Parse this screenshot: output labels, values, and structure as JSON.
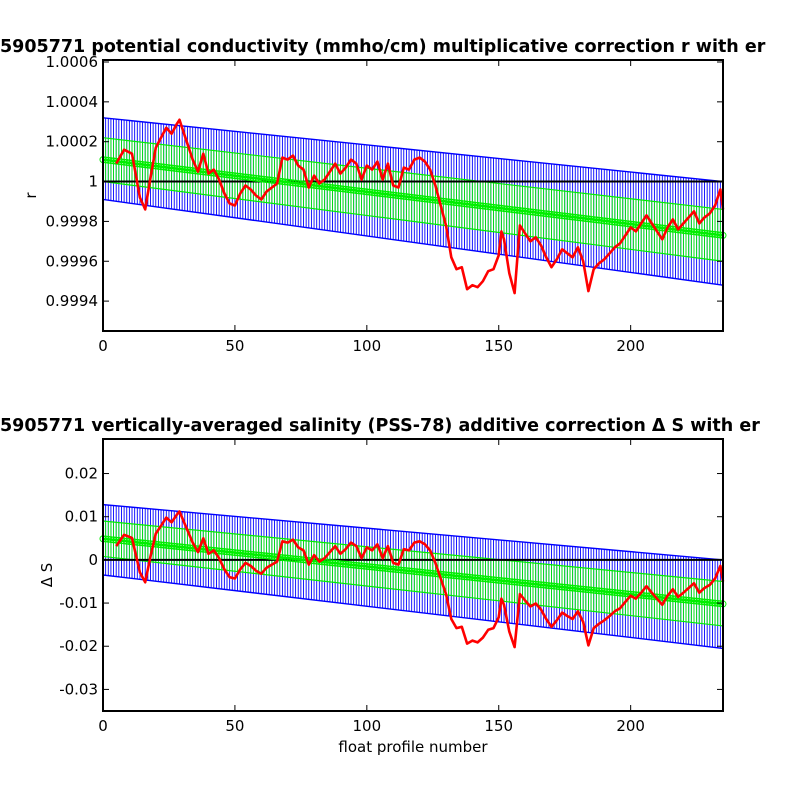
{
  "chart_data": [
    {
      "type": "line",
      "title": "5905771 potential conductivity (mmho/cm) multiplicative correction r with er",
      "xlabel": "",
      "ylabel": "r",
      "xlim": [
        0,
        235
      ],
      "ylim": [
        0.99925,
        1.00061
      ],
      "x_ticks": [
        0,
        50,
        100,
        150,
        200
      ],
      "y_ticks": [
        0.9994,
        0.9996,
        0.9998,
        1,
        1.0002,
        1.0004,
        1.0006
      ],
      "y_tick_labels": [
        "0.9994",
        "0.9996",
        "0.9998",
        "1",
        "1.0002",
        "1.0004",
        "1.0006"
      ],
      "reference_line": 1.0,
      "grid": false,
      "colors": {
        "raw": "#ff0000",
        "fit": "#00ee00",
        "fit_error": "#00ee00",
        "envelope": "#0000ff",
        "reference": "#000000"
      },
      "series": [
        {
          "style": "red line",
          "x": [
            5,
            8,
            11,
            14,
            16,
            18,
            20,
            22,
            24,
            26,
            28,
            29,
            30,
            32,
            34,
            36,
            38,
            40,
            42,
            44,
            46,
            48,
            50,
            52,
            54,
            56,
            58,
            60,
            62,
            64,
            66,
            68,
            70,
            72,
            74,
            76,
            78,
            80,
            82,
            84,
            86,
            88,
            90,
            92,
            94,
            96,
            98,
            100,
            102,
            104,
            106,
            108,
            110,
            112,
            114,
            116,
            118,
            120,
            122,
            124,
            126,
            128,
            130,
            132,
            134,
            136,
            138,
            140,
            142,
            144,
            146,
            148,
            150,
            151,
            152,
            154,
            156,
            158,
            160,
            162,
            164,
            166,
            168,
            170,
            172,
            174,
            176,
            178,
            180,
            182,
            184,
            186,
            188,
            190,
            192,
            194,
            196,
            198,
            200,
            202,
            204,
            206,
            208,
            210,
            212,
            214,
            216,
            218,
            220,
            222,
            224,
            226,
            228,
            230,
            232,
            234,
            235
          ],
          "y": [
            1.00009,
            1.00016,
            1.00014,
            0.99992,
            0.99986,
            1.00002,
            1.00017,
            1.00022,
            1.00027,
            1.00024,
            1.00029,
            1.00031,
            1.00027,
            1.00019,
            1.00011,
            1.00005,
            1.00014,
            1.00004,
            1.00006,
            1.00001,
            0.99994,
            0.99989,
            0.99988,
            0.99994,
            0.99998,
            0.99996,
            0.99993,
            0.99991,
            0.99995,
            0.99997,
            0.99999,
            1.00012,
            1.00011,
            1.00013,
            1.00008,
            1.00006,
            0.99997,
            1.00003,
            0.99999,
            1.00001,
            1.00005,
            1.00009,
            1.00004,
            1.00007,
            1.00011,
            1.00009,
            1.00001,
            1.00008,
            1.00006,
            1.0001,
            1.00001,
            1.00009,
            0.99998,
            0.99997,
            1.00007,
            1.00006,
            1.00011,
            1.00012,
            1.0001,
            1.00006,
            0.99998,
            0.99988,
            0.99978,
            0.99962,
            0.99956,
            0.99957,
            0.99946,
            0.99948,
            0.99947,
            0.9995,
            0.99955,
            0.99956,
            0.99963,
            0.99975,
            0.99971,
            0.99954,
            0.99944,
            0.99978,
            0.99974,
            0.9997,
            0.99972,
            0.99968,
            0.99962,
            0.99957,
            0.99961,
            0.99966,
            0.99964,
            0.99962,
            0.99967,
            0.9996,
            0.99945,
            0.99956,
            0.99959,
            0.99961,
            0.99964,
            0.99967,
            0.99969,
            0.99973,
            0.99977,
            0.99975,
            0.99979,
            0.99983,
            0.99979,
            0.99975,
            0.99971,
            0.99977,
            0.99981,
            0.99976,
            0.99979,
            0.99982,
            0.99985,
            0.99979,
            0.99982,
            0.99984,
            0.99988,
            0.99996,
            0.99986
          ]
        },
        {
          "style": "green fit line with circle markers",
          "x": [
            0,
            235
          ],
          "y": [
            1.00011,
            0.99973
          ]
        },
        {
          "style": "green error band",
          "x": [
            0,
            235
          ],
          "upper": [
            1.00022,
            0.99986
          ],
          "lower": [
            1.0,
            0.9996
          ]
        },
        {
          "style": "blue error envelope",
          "x": [
            0,
            235
          ],
          "upper": [
            1.00032,
            1.0
          ],
          "lower": [
            0.99991,
            0.99948
          ]
        }
      ]
    },
    {
      "type": "line",
      "title": "5905771 vertically-averaged salinity (PSS-78) additive correction Δ S with er",
      "xlabel": "float profile number",
      "ylabel": "Δ S",
      "xlim": [
        0,
        235
      ],
      "ylim": [
        -0.035,
        0.028
      ],
      "x_ticks": [
        0,
        50,
        100,
        150,
        200
      ],
      "y_ticks": [
        -0.03,
        -0.02,
        -0.01,
        0,
        0.01,
        0.02
      ],
      "y_tick_labels": [
        "-0.03",
        "-0.02",
        "-0.01",
        "0",
        "0.01",
        "0.02"
      ],
      "reference_line": 0,
      "grid": false,
      "colors": {
        "raw": "#ff0000",
        "fit": "#00ee00",
        "fit_error": "#00ee00",
        "envelope": "#0000ff",
        "reference": "#000000"
      },
      "series": [
        {
          "style": "red line",
          "x": [
            5,
            8,
            11,
            14,
            16,
            18,
            20,
            22,
            24,
            26,
            28,
            29,
            30,
            32,
            34,
            36,
            38,
            40,
            42,
            44,
            46,
            48,
            50,
            52,
            54,
            56,
            58,
            60,
            62,
            64,
            66,
            68,
            70,
            72,
            74,
            76,
            78,
            80,
            82,
            84,
            86,
            88,
            90,
            92,
            94,
            96,
            98,
            100,
            102,
            104,
            106,
            108,
            110,
            112,
            114,
            116,
            118,
            120,
            122,
            124,
            126,
            128,
            130,
            132,
            134,
            136,
            138,
            140,
            142,
            144,
            146,
            148,
            150,
            151,
            152,
            154,
            156,
            158,
            160,
            162,
            164,
            166,
            168,
            170,
            172,
            174,
            176,
            178,
            180,
            182,
            184,
            186,
            188,
            190,
            192,
            194,
            196,
            198,
            200,
            202,
            204,
            206,
            208,
            210,
            212,
            214,
            216,
            218,
            220,
            222,
            224,
            226,
            228,
            230,
            232,
            234,
            235
          ],
          "y": [
            0.0032,
            0.0058,
            0.0051,
            -0.0029,
            -0.0052,
            0.0008,
            0.0061,
            0.0079,
            0.0098,
            0.0087,
            0.0105,
            0.0112,
            0.0098,
            0.0069,
            0.004,
            0.0018,
            0.005,
            0.0014,
            0.0022,
            0.0004,
            -0.0022,
            -0.004,
            -0.0043,
            -0.0022,
            -0.0007,
            -0.0014,
            -0.0025,
            -0.0032,
            -0.0018,
            -0.0011,
            -0.0004,
            0.0043,
            0.004,
            0.0047,
            0.0029,
            0.0022,
            -0.0011,
            0.0011,
            -0.0004,
            0.0004,
            0.0018,
            0.0032,
            0.0014,
            0.0025,
            0.004,
            0.0032,
            0.0004,
            0.0029,
            0.0022,
            0.0036,
            0.0004,
            0.0032,
            -0.0007,
            -0.0011,
            0.0025,
            0.0022,
            0.004,
            0.0043,
            0.0036,
            0.0022,
            -0.0007,
            -0.0043,
            -0.0079,
            -0.0137,
            -0.0158,
            -0.0155,
            -0.0194,
            -0.0187,
            -0.0191,
            -0.018,
            -0.0162,
            -0.0158,
            -0.0133,
            -0.009,
            -0.0104,
            -0.0166,
            -0.0202,
            -0.0079,
            -0.0094,
            -0.0108,
            -0.0101,
            -0.0115,
            -0.0137,
            -0.0155,
            -0.014,
            -0.0122,
            -0.013,
            -0.0137,
            -0.0119,
            -0.0144,
            -0.0198,
            -0.0158,
            -0.0148,
            -0.014,
            -0.013,
            -0.0119,
            -0.0112,
            -0.0097,
            -0.0083,
            -0.009,
            -0.0076,
            -0.0061,
            -0.0076,
            -0.009,
            -0.0104,
            -0.0083,
            -0.0068,
            -0.0086,
            -0.0076,
            -0.0065,
            -0.0054,
            -0.0076,
            -0.0065,
            -0.0058,
            -0.0043,
            -0.0014,
            -0.005
          ]
        },
        {
          "style": "green fit line with circle markers",
          "x": [
            0,
            235
          ],
          "y": [
            0.0049,
            -0.0102
          ]
        },
        {
          "style": "green error band",
          "x": [
            0,
            235
          ],
          "upper": [
            0.009,
            -0.005
          ],
          "lower": [
            0.0008,
            -0.0153
          ]
        },
        {
          "style": "blue error envelope",
          "x": [
            0,
            235
          ],
          "upper": [
            0.0128,
            0.0
          ],
          "lower": [
            -0.0035,
            -0.0205
          ]
        }
      ]
    }
  ]
}
